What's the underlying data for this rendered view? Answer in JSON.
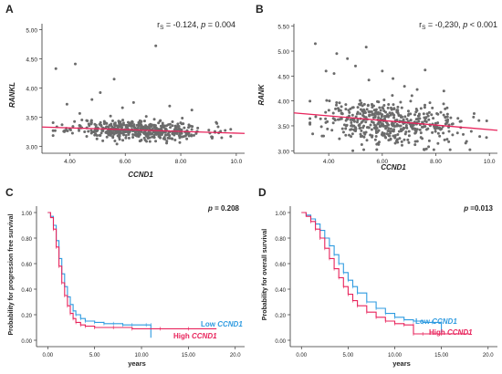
{
  "chart_data": [
    {
      "panel": "A",
      "type": "scatter",
      "ylabel": "RANKL",
      "xlabel": "CCND1",
      "annotation": {
        "prefix": "r",
        "sub": "S",
        "r_text": " = -0.124, ",
        "p_label": "p",
        "p_text": " = 0.004"
      },
      "xlim": [
        3.0,
        10.3
      ],
      "ylim": [
        2.88,
        5.1
      ],
      "xticks": [
        {
          "v": 4.0,
          "label": "4.00"
        },
        {
          "v": 6.0,
          "label": "6.00"
        },
        {
          "v": 8.0,
          "label": "8.00"
        },
        {
          "v": 10.0,
          "label": "10.0"
        }
      ],
      "yticks": [
        {
          "v": 3.0,
          "label": "3.00"
        },
        {
          "v": 3.5,
          "label": "3.50"
        },
        {
          "v": 4.0,
          "label": "4.00"
        },
        {
          "v": 4.5,
          "label": "4.50"
        },
        {
          "v": 5.0,
          "label": "5.00"
        }
      ],
      "fit_line": {
        "x": [
          3.0,
          10.3
        ],
        "y": [
          3.33,
          3.22
        ]
      },
      "points_spec": {
        "n": 500,
        "x_center": 6.5,
        "x_spread": 1.2,
        "x_min": 3.4,
        "x_max": 9.8,
        "y_intercept": 3.38,
        "y_slope": -0.015,
        "y_noise": 0.085,
        "y_min": 2.98,
        "y_max": 3.62
      },
      "outliers": [
        {
          "x": 3.5,
          "y": 4.33
        },
        {
          "x": 4.2,
          "y": 4.41
        },
        {
          "x": 7.1,
          "y": 4.72
        },
        {
          "x": 5.1,
          "y": 3.92
        },
        {
          "x": 5.6,
          "y": 4.15
        },
        {
          "x": 4.8,
          "y": 3.8
        },
        {
          "x": 6.3,
          "y": 3.75
        },
        {
          "x": 3.9,
          "y": 3.72
        },
        {
          "x": 7.6,
          "y": 3.69
        },
        {
          "x": 8.4,
          "y": 3.62
        },
        {
          "x": 5.9,
          "y": 3.66
        },
        {
          "x": 9.6,
          "y": 3.27
        }
      ]
    },
    {
      "panel": "B",
      "type": "scatter",
      "ylabel": "RANK",
      "xlabel": "CCND1",
      "annotation": {
        "prefix": "r",
        "sub": "S",
        "r_text": " = -0,230, ",
        "p_label": "p",
        "p_text": " < 0.001"
      },
      "xlim": [
        2.7,
        10.3
      ],
      "ylim": [
        2.95,
        5.55
      ],
      "xticks": [
        {
          "v": 4.0,
          "label": "4.00"
        },
        {
          "v": 6.0,
          "label": "6.00"
        },
        {
          "v": 8.0,
          "label": "8.00"
        },
        {
          "v": 10.0,
          "label": "10.0"
        }
      ],
      "yticks": [
        {
          "v": 3.0,
          "label": "3.00"
        },
        {
          "v": 3.5,
          "label": "3.50"
        },
        {
          "v": 4.0,
          "label": "4.00"
        },
        {
          "v": 4.5,
          "label": "4.50"
        },
        {
          "v": 5.0,
          "label": "5.00"
        },
        {
          "v": 5.5,
          "label": "5.50"
        }
      ],
      "fit_line": {
        "x": [
          2.7,
          10.3
        ],
        "y": [
          3.76,
          3.41
        ]
      },
      "points_spec": {
        "n": 500,
        "x_center": 6.2,
        "x_spread": 1.3,
        "x_min": 3.3,
        "x_max": 9.9,
        "y_intercept": 3.85,
        "y_slope": -0.045,
        "y_noise": 0.22,
        "y_min": 3.02,
        "y_max": 4.5
      },
      "outliers": [
        {
          "x": 3.5,
          "y": 5.15
        },
        {
          "x": 4.3,
          "y": 4.95
        },
        {
          "x": 4.7,
          "y": 4.85
        },
        {
          "x": 5.4,
          "y": 5.08
        },
        {
          "x": 3.9,
          "y": 4.6
        },
        {
          "x": 4.2,
          "y": 4.55
        },
        {
          "x": 5.0,
          "y": 4.7
        },
        {
          "x": 5.5,
          "y": 4.42
        },
        {
          "x": 6.0,
          "y": 4.6
        },
        {
          "x": 6.4,
          "y": 4.45
        },
        {
          "x": 7.6,
          "y": 4.62
        },
        {
          "x": 8.3,
          "y": 4.2
        },
        {
          "x": 9.9,
          "y": 3.6
        },
        {
          "x": 4.9,
          "y": 3.0
        }
      ]
    },
    {
      "panel": "C",
      "type": "line",
      "ylabel": "Probability for progression free survival",
      "xlabel": "years",
      "annotation": {
        "p_label": "p",
        "p_text": " = 0.208"
      },
      "xlim": [
        -1.2,
        21
      ],
      "ylim": [
        -0.05,
        1.05
      ],
      "xticks": [
        {
          "v": 0,
          "label": "0.00"
        },
        {
          "v": 5,
          "label": "5.00"
        },
        {
          "v": 10,
          "label": "10.00"
        },
        {
          "v": 15,
          "label": "15.00"
        },
        {
          "v": 20,
          "label": "20.0"
        }
      ],
      "yticks": [
        {
          "v": 0.0,
          "label": "0.00"
        },
        {
          "v": 0.2,
          "label": "0.20"
        },
        {
          "v": 0.4,
          "label": "0.40"
        },
        {
          "v": 0.6,
          "label": "0.60"
        },
        {
          "v": 0.8,
          "label": "0.80"
        },
        {
          "v": 1.0,
          "label": "1.00"
        }
      ],
      "series": [
        {
          "name_plain": "Low ",
          "name_italic": "CCND1",
          "color": "#2f9be0",
          "x": [
            0,
            0.3,
            0.6,
            0.9,
            1.2,
            1.5,
            1.8,
            2.1,
            2.4,
            2.7,
            3.0,
            3.5,
            4.0,
            5.0,
            6.0,
            7.0,
            8.0,
            9.0,
            10.5,
            11.0,
            11.0
          ],
          "y": [
            1.0,
            0.97,
            0.9,
            0.78,
            0.64,
            0.52,
            0.42,
            0.34,
            0.28,
            0.23,
            0.2,
            0.17,
            0.15,
            0.14,
            0.13,
            0.13,
            0.12,
            0.12,
            0.12,
            0.12,
            0.02
          ]
        },
        {
          "name_plain": "High ",
          "name_italic": "CCND1",
          "color": "#e8245c",
          "x": [
            0,
            0.3,
            0.6,
            0.9,
            1.2,
            1.5,
            1.8,
            2.1,
            2.4,
            2.7,
            3.0,
            3.5,
            4.0,
            5.0,
            7.0,
            9.0,
            12.0,
            15.0,
            18.0
          ],
          "y": [
            1.0,
            0.96,
            0.87,
            0.73,
            0.58,
            0.45,
            0.35,
            0.27,
            0.21,
            0.17,
            0.14,
            0.12,
            0.11,
            0.1,
            0.1,
            0.09,
            0.09,
            0.09,
            0.09
          ]
        }
      ]
    },
    {
      "panel": "D",
      "type": "line",
      "ylabel": "Probability for overall survival",
      "xlabel": "years",
      "annotation": {
        "p_label": "p",
        "p_text": " =0.013"
      },
      "xlim": [
        -1.2,
        21
      ],
      "ylim": [
        -0.05,
        1.05
      ],
      "xticks": [
        {
          "v": 0,
          "label": "0.00"
        },
        {
          "v": 5,
          "label": "5.00"
        },
        {
          "v": 10,
          "label": "10.00"
        },
        {
          "v": 15,
          "label": "15.00"
        },
        {
          "v": 20,
          "label": "20.0"
        }
      ],
      "yticks": [
        {
          "v": 0.0,
          "label": "0.00"
        },
        {
          "v": 0.2,
          "label": "0.20"
        },
        {
          "v": 0.4,
          "label": "0.40"
        },
        {
          "v": 0.6,
          "label": "0.60"
        },
        {
          "v": 0.8,
          "label": "0.80"
        },
        {
          "v": 1.0,
          "label": "1.00"
        }
      ],
      "series": [
        {
          "name_plain": "Low ",
          "name_italic": "CCND1",
          "color": "#2f9be0",
          "x": [
            0,
            0.5,
            1.0,
            1.5,
            2.0,
            2.5,
            3.0,
            3.5,
            4.0,
            4.5,
            5.0,
            5.5,
            6.0,
            7.0,
            8.0,
            9.0,
            10.0,
            11.0,
            12.0,
            13.0,
            14.0,
            15.0,
            15.0
          ],
          "y": [
            1.0,
            0.98,
            0.95,
            0.91,
            0.86,
            0.8,
            0.74,
            0.67,
            0.6,
            0.53,
            0.47,
            0.42,
            0.37,
            0.3,
            0.25,
            0.21,
            0.18,
            0.16,
            0.15,
            0.14,
            0.14,
            0.14,
            0.06
          ]
        },
        {
          "name_plain": "High ",
          "name_italic": "CCND1",
          "color": "#e8245c",
          "x": [
            0,
            0.5,
            1.0,
            1.5,
            2.0,
            2.5,
            3.0,
            3.5,
            4.0,
            4.5,
            5.0,
            5.5,
            6.0,
            7.0,
            8.0,
            9.0,
            10.0,
            11.0,
            12.0,
            12.0,
            13.0,
            15.0,
            18.0
          ],
          "y": [
            1.0,
            0.97,
            0.93,
            0.87,
            0.8,
            0.72,
            0.64,
            0.56,
            0.49,
            0.42,
            0.36,
            0.31,
            0.27,
            0.22,
            0.18,
            0.15,
            0.13,
            0.12,
            0.12,
            0.05,
            0.05,
            0.05,
            0.05
          ]
        }
      ]
    }
  ],
  "colors": {
    "fit_line": "#e8245c",
    "points": "#6b6b6b",
    "axis": "#333333",
    "text": "#222222"
  }
}
